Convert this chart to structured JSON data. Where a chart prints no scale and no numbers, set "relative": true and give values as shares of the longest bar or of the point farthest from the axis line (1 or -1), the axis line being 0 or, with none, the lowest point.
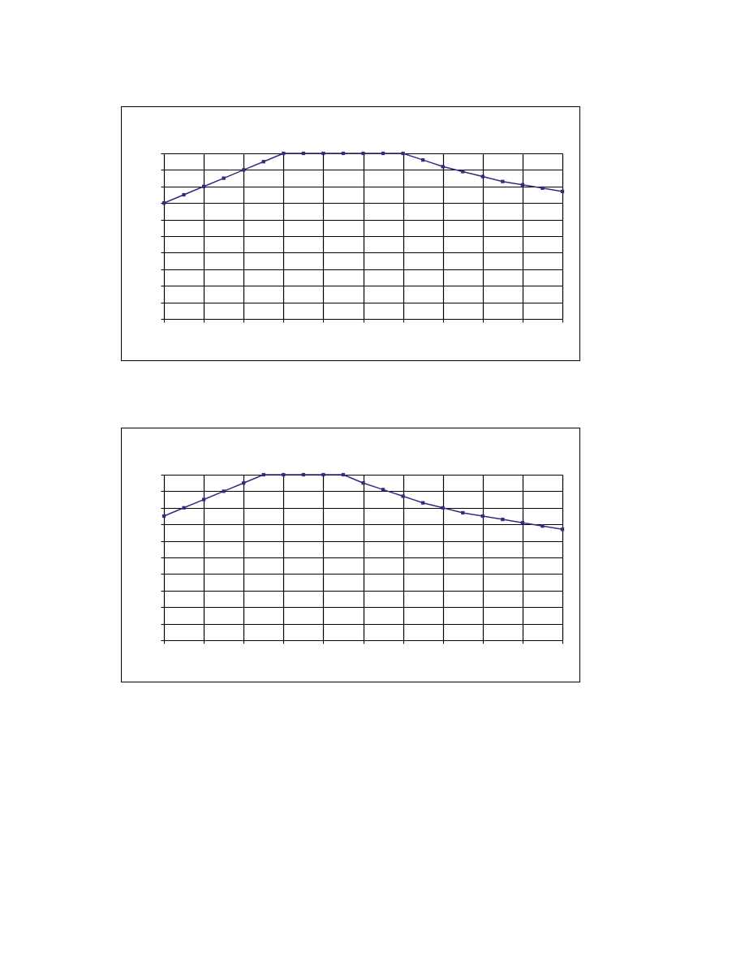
{
  "chart_data": [
    {
      "type": "line",
      "relative": true,
      "categories": [
        null,
        null,
        null,
        null,
        null,
        null,
        null,
        null,
        null,
        null,
        null,
        null,
        null,
        null,
        null,
        null,
        null,
        null,
        null,
        null,
        null
      ],
      "series": [
        {
          "color": "#2e2e7f",
          "values": [
            0.7,
            0.75,
            0.8,
            0.85,
            0.9,
            0.95,
            1,
            1,
            1,
            1,
            1,
            1,
            1,
            0.96,
            0.92,
            0.89,
            0.86,
            0.83,
            0.81,
            0.79,
            0.77
          ]
        }
      ],
      "grid": true,
      "marker": "square",
      "line_style": "solid",
      "legend": false
    },
    {
      "type": "line",
      "relative": true,
      "categories": [
        null,
        null,
        null,
        null,
        null,
        null,
        null,
        null,
        null,
        null,
        null,
        null,
        null,
        null,
        null,
        null,
        null,
        null,
        null,
        null,
        null
      ],
      "series": [
        {
          "color": "#2e2e7f",
          "values": [
            0.75,
            0.8,
            0.85,
            0.9,
            0.95,
            1,
            1,
            1,
            1,
            1,
            0.95,
            0.91,
            0.87,
            0.83,
            0.8,
            0.77,
            0.75,
            0.73,
            0.71,
            0.69,
            0.67
          ]
        }
      ],
      "grid": true,
      "marker": "square",
      "line_style": "solid",
      "legend": false
    }
  ]
}
